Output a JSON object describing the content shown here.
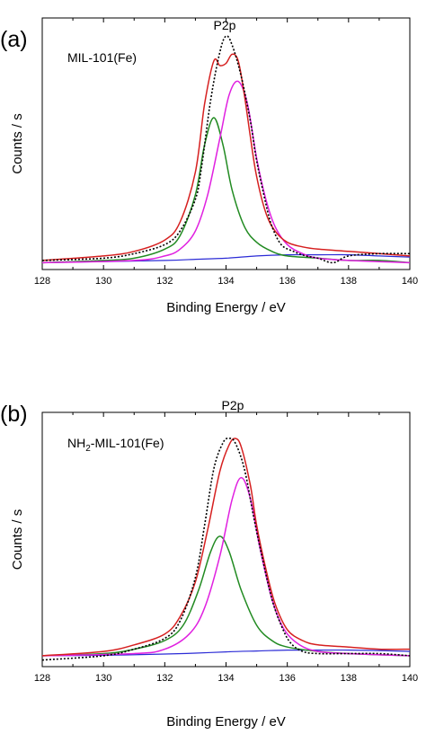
{
  "chart_data": [
    {
      "type": "line",
      "panel_label": "(a)",
      "peak_label": "P2p",
      "sample_label": {
        "main": "MIL-101(Fe)",
        "sub": "",
        "rest": ""
      },
      "xlabel": "Binding Energy / eV",
      "ylabel": "Counts / s",
      "xlim": [
        128,
        140
      ],
      "ylim": [
        -0.03,
        1.08
      ],
      "xticks": [
        "128",
        "130",
        "132",
        "134",
        "136",
        "138",
        "140"
      ],
      "grid": false,
      "series": [
        {
          "color": "#000000",
          "style": "dotted",
          "x": [
            128,
            130,
            131,
            132,
            132.5,
            133,
            133.2,
            133.5,
            133.8,
            134,
            134.2,
            134.5,
            134.8,
            135,
            135.3,
            135.5,
            135.8,
            136.2,
            136.6,
            137,
            137.5,
            138,
            139,
            140
          ],
          "y": [
            0.01,
            0.02,
            0.04,
            0.08,
            0.14,
            0.28,
            0.42,
            0.72,
            0.93,
            1.0,
            0.96,
            0.82,
            0.62,
            0.45,
            0.26,
            0.16,
            0.08,
            0.05,
            0.03,
            0.02,
            0.0,
            0.03,
            0.04,
            0.04
          ]
        },
        {
          "color": "#d62020",
          "style": "solid",
          "x": [
            128,
            130,
            131,
            132,
            132.5,
            133,
            133.3,
            133.6,
            133.8,
            134,
            134.2,
            134.4,
            134.6,
            134.8,
            135,
            135.3,
            135.6,
            136,
            136.5,
            137,
            138,
            139,
            140
          ],
          "y": [
            0.01,
            0.03,
            0.05,
            0.1,
            0.18,
            0.4,
            0.7,
            0.89,
            0.87,
            0.88,
            0.92,
            0.89,
            0.74,
            0.55,
            0.38,
            0.22,
            0.14,
            0.09,
            0.07,
            0.06,
            0.05,
            0.04,
            0.03
          ]
        },
        {
          "color": "#228b22",
          "style": "solid",
          "x": [
            128,
            130,
            131,
            132,
            132.5,
            133,
            133.3,
            133.6,
            133.9,
            134.2,
            134.6,
            135,
            135.5,
            136,
            137,
            138,
            139,
            140
          ],
          "y": [
            0.0,
            0.01,
            0.02,
            0.06,
            0.12,
            0.3,
            0.52,
            0.64,
            0.52,
            0.32,
            0.16,
            0.09,
            0.05,
            0.03,
            0.02,
            0.01,
            0.01,
            0.0
          ]
        },
        {
          "color": "#e020e0",
          "style": "solid",
          "x": [
            128,
            131,
            132,
            132.5,
            133,
            133.4,
            133.8,
            134.1,
            134.4,
            134.7,
            135,
            135.3,
            135.6,
            136,
            136.5,
            137,
            138,
            140
          ],
          "y": [
            0.0,
            0.01,
            0.03,
            0.06,
            0.14,
            0.3,
            0.55,
            0.74,
            0.8,
            0.7,
            0.46,
            0.28,
            0.16,
            0.08,
            0.04,
            0.02,
            0.01,
            0.0
          ]
        },
        {
          "color": "#2b2bd6",
          "style": "solid",
          "x": [
            128,
            130,
            132,
            133,
            134,
            135,
            136,
            137,
            138,
            139,
            140
          ],
          "y": [
            0.0,
            0.005,
            0.01,
            0.015,
            0.02,
            0.03,
            0.035,
            0.035,
            0.035,
            0.03,
            0.025
          ]
        }
      ]
    },
    {
      "type": "line",
      "panel_label": "(b)",
      "peak_label": "P2p",
      "sample_label": {
        "main": "NH",
        "sub": "2",
        "rest": "-MIL-101(Fe)"
      },
      "xlabel": "Binding Energy / eV",
      "ylabel": "Counts / s",
      "xlim": [
        128,
        140
      ],
      "ylim": [
        -0.05,
        1.12
      ],
      "xticks": [
        "128",
        "130",
        "132",
        "134",
        "136",
        "138",
        "140"
      ],
      "grid": false,
      "series": [
        {
          "color": "#000000",
          "style": "dotted",
          "x": [
            128,
            130,
            131,
            132,
            132.5,
            133,
            133.3,
            133.6,
            133.9,
            134.1,
            134.3,
            134.6,
            134.9,
            135.2,
            135.5,
            135.8,
            136.1,
            136.5,
            137,
            138,
            139,
            140
          ],
          "y": [
            -0.02,
            0.0,
            0.03,
            0.08,
            0.16,
            0.36,
            0.6,
            0.86,
            0.98,
            1.0,
            0.98,
            0.86,
            0.64,
            0.44,
            0.26,
            0.14,
            0.06,
            0.02,
            0.01,
            0.01,
            0.01,
            0.0
          ]
        },
        {
          "color": "#d62020",
          "style": "solid",
          "x": [
            128,
            130,
            131,
            132,
            132.5,
            133,
            133.4,
            133.8,
            134.1,
            134.3,
            134.5,
            134.8,
            135,
            135.3,
            135.6,
            136,
            136.5,
            137,
            138,
            139,
            140
          ],
          "y": [
            0.0,
            0.02,
            0.05,
            0.1,
            0.18,
            0.34,
            0.58,
            0.85,
            0.97,
            1.0,
            0.96,
            0.78,
            0.6,
            0.4,
            0.24,
            0.12,
            0.07,
            0.05,
            0.04,
            0.03,
            0.03
          ]
        },
        {
          "color": "#228b22",
          "style": "solid",
          "x": [
            128,
            130,
            131,
            132,
            132.6,
            133.1,
            133.5,
            133.8,
            134.1,
            134.5,
            135,
            135.5,
            136,
            137,
            138,
            140
          ],
          "y": [
            0.0,
            0.01,
            0.03,
            0.07,
            0.14,
            0.3,
            0.48,
            0.55,
            0.48,
            0.3,
            0.14,
            0.07,
            0.04,
            0.02,
            0.01,
            0.0
          ]
        },
        {
          "color": "#e020e0",
          "style": "solid",
          "x": [
            128,
            131,
            132,
            132.8,
            133.3,
            133.8,
            134.2,
            134.5,
            134.8,
            135.1,
            135.5,
            135.9,
            136.4,
            137,
            138,
            140
          ],
          "y": [
            0.0,
            0.01,
            0.03,
            0.1,
            0.22,
            0.46,
            0.72,
            0.82,
            0.72,
            0.5,
            0.26,
            0.12,
            0.05,
            0.02,
            0.01,
            0.0
          ]
        },
        {
          "color": "#2b2bd6",
          "style": "solid",
          "x": [
            128,
            130,
            132,
            133,
            134,
            135,
            136,
            137,
            138,
            139,
            140
          ],
          "y": [
            0.0,
            0.002,
            0.008,
            0.012,
            0.018,
            0.022,
            0.026,
            0.026,
            0.026,
            0.024,
            0.02
          ]
        }
      ]
    }
  ]
}
